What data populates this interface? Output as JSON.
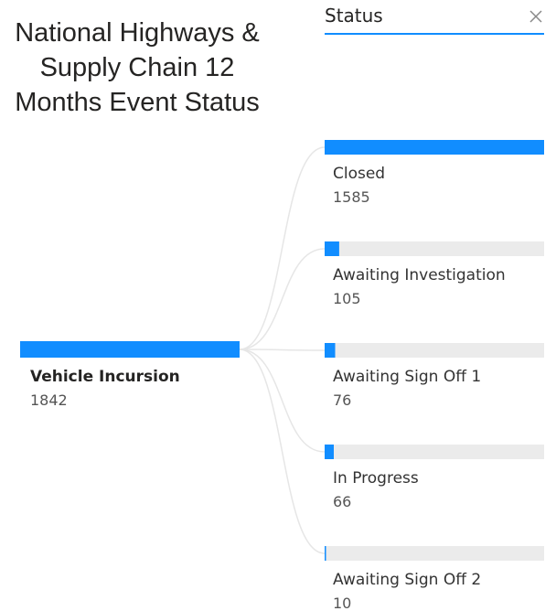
{
  "chart_data": {
    "type": "decomposition_tree",
    "title_lines": [
      "National Highways &",
      "Supply Chain 12",
      "Months Event Status"
    ],
    "level_label": "Status",
    "root": {
      "name": "Vehicle Incursion",
      "value": 1842
    },
    "categories": [
      "Closed",
      "Awaiting Investigation",
      "Awaiting Sign Off 1",
      "In Progress",
      "Awaiting Sign Off 2"
    ],
    "values": [
      1585,
      105,
      76,
      66,
      10
    ],
    "color": "#118dff"
  }
}
